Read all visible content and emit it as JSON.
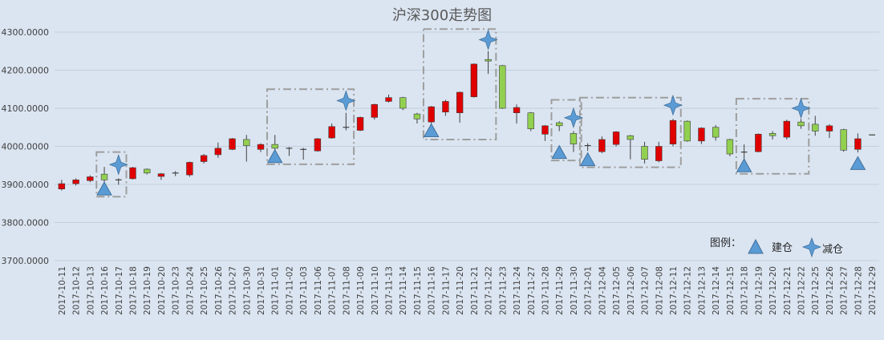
{
  "chart_data": {
    "type": "candlestick",
    "title": "沪深300走势图",
    "ylim": [
      3700,
      4300
    ],
    "yticks": [
      "3700.0000",
      "3800.0000",
      "3900.0000",
      "4000.0000",
      "4100.0000",
      "4200.0000",
      "4300.0000"
    ],
    "grid": true,
    "up_color": "#e00000",
    "down_color": "#92d050",
    "legend": {
      "title": "图例：",
      "buy_label": "建仓",
      "sell_label": "减仓",
      "position": "bottom-right"
    },
    "candles": [
      {
        "date": "2017-10-11",
        "open": 3888,
        "close": 3902,
        "high": 3912,
        "low": 3884
      },
      {
        "date": "2017-10-12",
        "open": 3902,
        "close": 3912,
        "high": 3916,
        "low": 3897
      },
      {
        "date": "2017-10-13",
        "open": 3910,
        "close": 3920,
        "high": 3924,
        "low": 3906
      },
      {
        "date": "2017-10-16",
        "open": 3927,
        "close": 3912,
        "high": 3946,
        "low": 3896
      },
      {
        "date": "2017-10-17",
        "open": 3912,
        "close": 3910,
        "high": 3916,
        "low": 3899
      },
      {
        "date": "2017-10-18",
        "open": 3915,
        "close": 3944,
        "high": 3946,
        "low": 3913
      },
      {
        "date": "2017-10-19",
        "open": 3940,
        "close": 3930,
        "high": 3942,
        "low": 3926
      },
      {
        "date": "2017-10-20",
        "open": 3921,
        "close": 3928,
        "high": 3930,
        "low": 3912
      },
      {
        "date": "2017-10-23",
        "open": 3928,
        "close": 3930,
        "high": 3935,
        "low": 3922
      },
      {
        "date": "2017-10-24",
        "open": 3925,
        "close": 3958,
        "high": 3960,
        "low": 3920
      },
      {
        "date": "2017-10-25",
        "open": 3960,
        "close": 3976,
        "high": 3980,
        "low": 3955
      },
      {
        "date": "2017-10-26",
        "open": 3978,
        "close": 3995,
        "high": 4010,
        "low": 3970
      },
      {
        "date": "2017-10-27",
        "open": 3992,
        "close": 4020,
        "high": 4022,
        "low": 3990
      },
      {
        "date": "2017-10-30",
        "open": 4018,
        "close": 4002,
        "high": 4030,
        "low": 3960
      },
      {
        "date": "2017-10-31",
        "open": 3992,
        "close": 4005,
        "high": 4008,
        "low": 3985
      },
      {
        "date": "2017-11-01",
        "open": 4005,
        "close": 3995,
        "high": 4030,
        "low": 3984
      },
      {
        "date": "2017-11-02",
        "open": 3995,
        "close": 3993,
        "high": 3998,
        "low": 3975
      },
      {
        "date": "2017-11-03",
        "open": 3992,
        "close": 3990,
        "high": 3996,
        "low": 3965
      },
      {
        "date": "2017-11-06",
        "open": 3988,
        "close": 4020,
        "high": 4022,
        "low": 3986
      },
      {
        "date": "2017-11-07",
        "open": 4022,
        "close": 4052,
        "high": 4060,
        "low": 4020
      },
      {
        "date": "2017-11-08",
        "open": 4050,
        "close": 4048,
        "high": 4088,
        "low": 4042
      },
      {
        "date": "2017-11-09",
        "open": 4042,
        "close": 4076,
        "high": 4078,
        "low": 4040
      },
      {
        "date": "2017-11-10",
        "open": 4076,
        "close": 4110,
        "high": 4112,
        "low": 4070
      },
      {
        "date": "2017-11-13",
        "open": 4118,
        "close": 4128,
        "high": 4136,
        "low": 4115
      },
      {
        "date": "2017-11-14",
        "open": 4128,
        "close": 4100,
        "high": 4130,
        "low": 4095
      },
      {
        "date": "2017-11-15",
        "open": 4085,
        "close": 4072,
        "high": 4088,
        "low": 4060
      },
      {
        "date": "2017-11-16",
        "open": 4064,
        "close": 4104,
        "high": 4106,
        "low": 4058
      },
      {
        "date": "2017-11-17",
        "open": 4090,
        "close": 4118,
        "high": 4122,
        "low": 4080
      },
      {
        "date": "2017-11-20",
        "open": 4088,
        "close": 4142,
        "high": 4144,
        "low": 4062
      },
      {
        "date": "2017-11-21",
        "open": 4130,
        "close": 4216,
        "high": 4218,
        "low": 4128
      },
      {
        "date": "2017-11-22",
        "open": 4228,
        "close": 4224,
        "high": 4250,
        "low": 4190
      },
      {
        "date": "2017-11-23",
        "open": 4212,
        "close": 4100,
        "high": 4214,
        "low": 4098
      },
      {
        "date": "2017-11-24",
        "open": 4088,
        "close": 4102,
        "high": 4110,
        "low": 4060
      },
      {
        "date": "2017-11-27",
        "open": 4088,
        "close": 4046,
        "high": 4090,
        "low": 4040
      },
      {
        "date": "2017-11-28",
        "open": 4032,
        "close": 4054,
        "high": 4056,
        "low": 4014
      },
      {
        "date": "2017-11-29",
        "open": 4062,
        "close": 4054,
        "high": 4066,
        "low": 4040
      },
      {
        "date": "2017-11-30",
        "open": 4034,
        "close": 4006,
        "high": 4040,
        "low": 3985
      },
      {
        "date": "2017-12-01",
        "open": 3999,
        "close": 4002,
        "high": 4008,
        "low": 3988
      },
      {
        "date": "2017-12-04",
        "open": 3986,
        "close": 4018,
        "high": 4026,
        "low": 3982
      },
      {
        "date": "2017-12-05",
        "open": 4005,
        "close": 4038,
        "high": 4040,
        "low": 4000
      },
      {
        "date": "2017-12-06",
        "open": 4028,
        "close": 4018,
        "high": 4030,
        "low": 3966
      },
      {
        "date": "2017-12-07",
        "open": 4000,
        "close": 3966,
        "high": 4012,
        "low": 3955
      },
      {
        "date": "2017-12-08",
        "open": 3962,
        "close": 4000,
        "high": 4012,
        "low": 3958
      },
      {
        "date": "2017-12-11",
        "open": 4006,
        "close": 4068,
        "high": 4072,
        "low": 4000
      },
      {
        "date": "2017-12-12",
        "open": 4066,
        "close": 4014,
        "high": 4068,
        "low": 4012
      },
      {
        "date": "2017-12-13",
        "open": 4014,
        "close": 4048,
        "high": 4050,
        "low": 4006
      },
      {
        "date": "2017-12-14",
        "open": 4050,
        "close": 4024,
        "high": 4056,
        "low": 4015
      },
      {
        "date": "2017-12-15",
        "open": 4018,
        "close": 3980,
        "high": 4020,
        "low": 3974
      },
      {
        "date": "2017-12-18",
        "open": 3985,
        "close": 3985,
        "high": 4005,
        "low": 3950
      },
      {
        "date": "2017-12-19",
        "open": 3986,
        "close": 4032,
        "high": 4034,
        "low": 3984
      },
      {
        "date": "2017-12-20",
        "open": 4034,
        "close": 4028,
        "high": 4040,
        "low": 4018
      },
      {
        "date": "2017-12-21",
        "open": 4024,
        "close": 4066,
        "high": 4070,
        "low": 4018
      },
      {
        "date": "2017-12-22",
        "open": 4064,
        "close": 4054,
        "high": 4072,
        "low": 4046
      },
      {
        "date": "2017-12-25",
        "open": 4058,
        "close": 4040,
        "high": 4080,
        "low": 4028
      },
      {
        "date": "2017-12-26",
        "open": 4040,
        "close": 4054,
        "high": 4058,
        "low": 4022
      },
      {
        "date": "2017-12-27",
        "open": 4044,
        "close": 3990,
        "high": 4046,
        "low": 3986
      },
      {
        "date": "2017-12-28",
        "open": 3992,
        "close": 4020,
        "high": 4034,
        "low": 3984
      },
      {
        "date": "2017-12-29",
        "open": 4030,
        "close": 4030,
        "high": 4030,
        "low": 4030
      }
    ],
    "buy_markers": [
      {
        "date": "2017-10-16",
        "value": 3887
      },
      {
        "date": "2017-11-01",
        "value": 3972
      },
      {
        "date": "2017-11-16",
        "value": 4040
      },
      {
        "date": "2017-11-29",
        "value": 3983
      },
      {
        "date": "2017-12-01",
        "value": 3964
      },
      {
        "date": "2017-12-18",
        "value": 3948
      },
      {
        "date": "2017-12-28",
        "value": 3954
      }
    ],
    "sell_markers": [
      {
        "date": "2017-10-17",
        "value": 3952
      },
      {
        "date": "2017-11-08",
        "value": 4120
      },
      {
        "date": "2017-11-22",
        "value": 4280
      },
      {
        "date": "2017-11-30",
        "value": 4075
      },
      {
        "date": "2017-12-11",
        "value": 4108
      },
      {
        "date": "2017-12-22",
        "value": 4100
      }
    ],
    "highlight_boxes": [
      {
        "from": "2017-10-16",
        "to": "2017-10-17",
        "top": 3985,
        "bottom": 3868
      },
      {
        "from": "2017-11-01",
        "to": "2017-11-08",
        "top": 4150,
        "bottom": 3953
      },
      {
        "from": "2017-11-16",
        "to": "2017-11-22",
        "top": 4308,
        "bottom": 4018
      },
      {
        "from": "2017-11-29",
        "to": "2017-11-30",
        "top": 4122,
        "bottom": 3963
      },
      {
        "from": "2017-12-01",
        "to": "2017-12-11",
        "top": 4128,
        "bottom": 3945
      },
      {
        "from": "2017-12-18",
        "to": "2017-12-22",
        "top": 4125,
        "bottom": 3928
      }
    ]
  }
}
